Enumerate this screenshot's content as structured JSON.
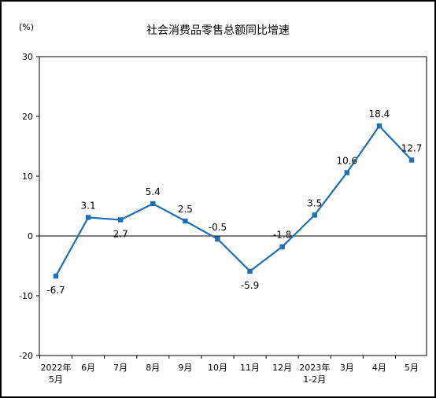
{
  "chart_data": {
    "type": "line",
    "title": "社会消费品零售总额同比增速",
    "unit": "(%)",
    "categories": [
      [
        "2022年",
        "5月"
      ],
      [
        "6月"
      ],
      [
        "7月"
      ],
      [
        "8月"
      ],
      [
        "9月"
      ],
      [
        "10月"
      ],
      [
        "11月"
      ],
      [
        "12月"
      ],
      [
        "2023年",
        "1-2月"
      ],
      [
        "3月"
      ],
      [
        "4月"
      ],
      [
        "5月"
      ]
    ],
    "series": [
      {
        "values": [
          -6.7,
          3.1,
          2.7,
          5.4,
          2.5,
          -0.5,
          -5.9,
          -1.8,
          3.5,
          10.6,
          18.4,
          12.7
        ],
        "labels": [
          "-6.7",
          "3.1",
          "2.7",
          "5.4",
          "2.5",
          "-0.5",
          "-5.9",
          "-1.8",
          "3.5",
          "10.6",
          "18.4",
          "12.7"
        ],
        "color": "#1f6fb5"
      }
    ],
    "yticks": [
      "30",
      "20",
      "10",
      "0",
      "-10",
      "-20"
    ],
    "ylim": [
      -20,
      30
    ],
    "grid": false,
    "legend": "none"
  }
}
